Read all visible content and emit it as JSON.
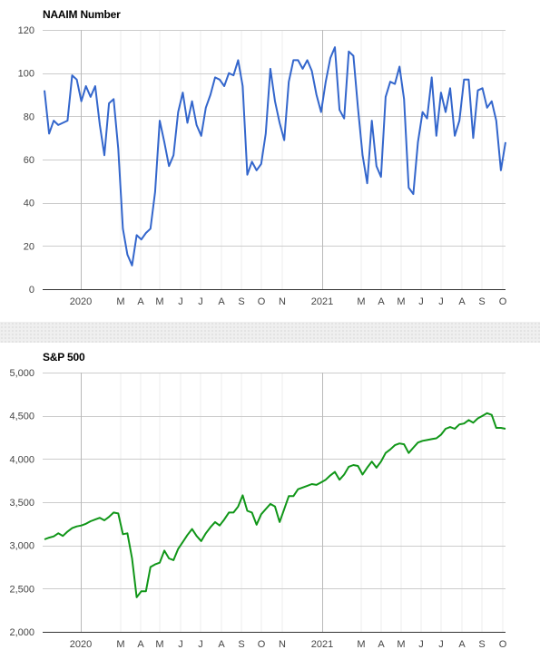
{
  "chart_data": [
    {
      "type": "line",
      "title": "NAAIM Number",
      "ylim": [
        0,
        120
      ],
      "yticks": [
        0,
        20,
        40,
        60,
        80,
        100,
        120
      ],
      "ytick_labels": [
        "0",
        "20",
        "40",
        "60",
        "80",
        "100",
        "120"
      ],
      "x_month_labels": [
        "2020",
        "M",
        "A",
        "M",
        "J",
        "J",
        "A",
        "S",
        "O",
        "N",
        "2021",
        "M",
        "A",
        "M",
        "J",
        "J",
        "A",
        "S",
        "O"
      ],
      "grid": true,
      "color": "#3366cc",
      "series": [
        {
          "values": [
            92,
            72,
            78,
            76,
            77,
            78,
            99,
            97,
            87,
            94,
            89,
            94,
            76,
            62,
            86,
            88,
            65,
            28,
            16,
            11,
            25,
            23,
            26,
            28,
            45,
            78,
            68,
            57,
            62,
            82,
            91,
            77,
            87,
            76,
            71,
            84,
            90,
            98,
            97,
            94,
            100,
            99,
            106,
            94,
            53,
            59,
            55,
            58,
            72,
            102,
            87,
            77,
            69,
            96,
            106,
            106,
            102,
            106,
            101,
            90,
            82,
            96,
            107,
            112,
            83,
            79,
            110,
            108,
            84,
            62,
            49,
            78,
            57,
            52,
            89,
            96,
            95,
            103,
            88,
            47,
            44,
            68,
            82,
            79,
            98,
            71,
            91,
            82,
            93,
            71,
            78,
            97,
            97,
            70,
            92,
            93,
            84,
            87,
            78,
            55,
            68
          ]
        }
      ]
    },
    {
      "type": "line",
      "title": "S&P 500",
      "ylim": [
        2000,
        5000
      ],
      "yticks": [
        2000,
        2500,
        3000,
        3500,
        4000,
        4500,
        5000
      ],
      "ytick_labels": [
        "2,000",
        "2,500",
        "3,000",
        "3,500",
        "4,000",
        "4,500",
        "5,000"
      ],
      "x_month_labels": [
        "2020",
        "M",
        "A",
        "M",
        "J",
        "J",
        "A",
        "S",
        "O",
        "N",
        "2021",
        "M",
        "A",
        "M",
        "J",
        "J",
        "A",
        "S",
        "O"
      ],
      "grid": true,
      "color": "#109618",
      "series": [
        {
          "values": [
            3070,
            3090,
            3105,
            3140,
            3110,
            3160,
            3200,
            3220,
            3230,
            3250,
            3280,
            3300,
            3320,
            3290,
            3330,
            3380,
            3370,
            3130,
            3140,
            2850,
            2400,
            2470,
            2470,
            2750,
            2780,
            2800,
            2940,
            2850,
            2830,
            2960,
            3040,
            3120,
            3190,
            3110,
            3050,
            3140,
            3210,
            3270,
            3230,
            3300,
            3380,
            3380,
            3450,
            3580,
            3400,
            3380,
            3240,
            3360,
            3420,
            3480,
            3450,
            3270,
            3420,
            3570,
            3570,
            3650,
            3670,
            3690,
            3710,
            3700,
            3730,
            3760,
            3810,
            3850,
            3760,
            3820,
            3910,
            3930,
            3920,
            3820,
            3900,
            3970,
            3900,
            3970,
            4070,
            4110,
            4160,
            4180,
            4170,
            4070,
            4130,
            4190,
            4210,
            4220,
            4230,
            4240,
            4280,
            4350,
            4370,
            4350,
            4400,
            4410,
            4450,
            4420,
            4470,
            4500,
            4530,
            4510,
            4360,
            4360,
            4350
          ]
        }
      ]
    }
  ]
}
